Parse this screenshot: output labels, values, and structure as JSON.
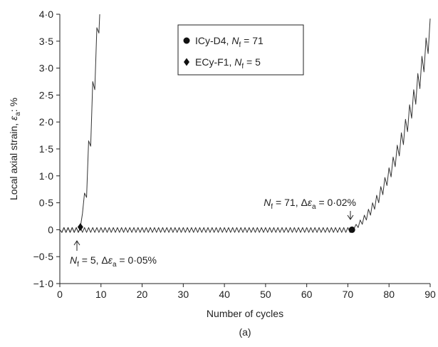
{
  "chart_data": {
    "type": "line",
    "x_label": "Number of cycles",
    "y_label": [
      "Local axial strain, ",
      "ε",
      "a",
      ": %"
    ],
    "caption": "(a)",
    "xlim": [
      0,
      90
    ],
    "xticks": [
      0,
      10,
      20,
      30,
      40,
      50,
      60,
      70,
      80,
      90
    ],
    "ylim": [
      -1,
      4
    ],
    "yticks": [
      {
        "value": -1,
        "label": "−1·0"
      },
      {
        "value": -0.5,
        "label": "−0·5"
      },
      0,
      {
        "value": 0.5,
        "label": "0·5"
      },
      {
        "value": 1,
        "label": "1·0"
      },
      {
        "value": 1.5,
        "label": "1·5"
      },
      {
        "value": 2,
        "label": "2·0"
      },
      {
        "value": 2.5,
        "label": "2·5"
      },
      {
        "value": 3,
        "label": "3·0"
      },
      {
        "value": 3.5,
        "label": "3·5"
      },
      {
        "value": 4,
        "label": "4·0"
      }
    ],
    "series": [
      {
        "name": [
          "ICy-D4, ",
          "N",
          "f",
          " = 71"
        ],
        "color": "#333333",
        "marker": "circle",
        "failure": {
          "x": 71,
          "y": 0
        },
        "x": [
          0,
          0.5,
          1,
          1.5,
          2,
          2.5,
          3,
          3.5,
          4,
          4.5,
          5,
          5.5,
          6,
          6.5,
          7,
          7.5,
          8,
          8.5,
          9,
          9.5,
          10,
          10.5,
          11,
          11.5,
          12,
          12.5,
          13,
          13.5,
          14,
          14.5,
          15,
          15.5,
          16,
          16.5,
          17,
          17.5,
          18,
          18.5,
          19,
          19.5,
          20,
          20.5,
          21,
          21.5,
          22,
          22.5,
          23,
          23.5,
          24,
          24.5,
          25,
          25.5,
          26,
          26.5,
          27,
          27.5,
          28,
          28.5,
          29,
          29.5,
          30,
          30.5,
          31,
          31.5,
          32,
          32.5,
          33,
          33.5,
          34,
          34.5,
          35,
          35.5,
          36,
          36.5,
          37,
          37.5,
          38,
          38.5,
          39,
          39.5,
          40,
          40.5,
          41,
          41.5,
          42,
          42.5,
          43,
          43.5,
          44,
          44.5,
          45,
          45.5,
          46,
          46.5,
          47,
          47.5,
          48,
          48.5,
          49,
          49.5,
          50,
          50.5,
          51,
          51.5,
          52,
          52.5,
          53,
          53.5,
          54,
          54.5,
          55,
          55.5,
          56,
          56.5,
          57,
          57.5,
          58,
          58.5,
          59,
          59.5,
          60,
          60.5,
          61,
          61.5,
          62,
          62.5,
          63,
          63.5,
          64,
          64.5,
          65,
          65.5,
          66,
          66.5,
          67,
          67.5,
          68,
          68.5,
          69,
          69.5,
          70,
          70.5,
          71,
          71.5,
          72,
          72.5,
          73,
          73.5,
          74,
          74.5,
          75,
          75.5,
          76,
          76.5,
          77,
          77.5,
          78,
          78.5,
          79,
          79.5,
          80,
          80.5,
          81,
          81.5,
          82,
          82.5,
          83,
          83.5,
          84,
          84.5,
          85,
          85.5,
          86,
          86.5,
          87,
          87.5,
          88,
          88.5,
          89,
          89.5,
          90
        ],
        "values": [
          0,
          -0.05,
          0.04,
          -0.05,
          0.04,
          -0.05,
          0.04,
          -0.05,
          0.04,
          -0.05,
          0.04,
          -0.05,
          0.04,
          -0.05,
          0.04,
          -0.05,
          0.04,
          -0.05,
          0.04,
          -0.05,
          0.04,
          -0.05,
          0.04,
          -0.05,
          0.04,
          -0.05,
          0.04,
          -0.05,
          0.04,
          -0.05,
          0.04,
          -0.05,
          0.04,
          -0.05,
          0.04,
          -0.05,
          0.04,
          -0.05,
          0.04,
          -0.05,
          0.04,
          -0.05,
          0.04,
          -0.05,
          0.04,
          -0.05,
          0.04,
          -0.05,
          0.04,
          -0.05,
          0.04,
          -0.05,
          0.04,
          -0.05,
          0.04,
          -0.05,
          0.04,
          -0.05,
          0.04,
          -0.05,
          0.04,
          -0.05,
          0.04,
          -0.05,
          0.04,
          -0.05,
          0.04,
          -0.05,
          0.04,
          -0.05,
          0.04,
          -0.05,
          0.04,
          -0.05,
          0.04,
          -0.05,
          0.04,
          -0.05,
          0.04,
          -0.05,
          0.04,
          -0.05,
          0.04,
          -0.05,
          0.04,
          -0.05,
          0.04,
          -0.05,
          0.04,
          -0.05,
          0.04,
          -0.05,
          0.04,
          -0.05,
          0.04,
          -0.05,
          0.04,
          -0.05,
          0.04,
          -0.05,
          0.04,
          -0.05,
          0.04,
          -0.05,
          0.04,
          -0.05,
          0.04,
          -0.05,
          0.04,
          -0.05,
          0.04,
          -0.05,
          0.04,
          -0.05,
          0.04,
          -0.05,
          0.04,
          -0.05,
          0.04,
          -0.05,
          0.04,
          -0.05,
          0.04,
          -0.05,
          0.04,
          -0.05,
          0.04,
          -0.05,
          0.04,
          -0.05,
          0.04,
          -0.05,
          0.04,
          -0.05,
          0.04,
          -0.05,
          0.04,
          -0.05,
          0.04,
          -0.05,
          0.04,
          -0.05,
          0,
          0.02,
          0.1,
          0.04,
          0.18,
          0.1,
          0.27,
          0.18,
          0.38,
          0.27,
          0.5,
          0.38,
          0.64,
          0.5,
          0.8,
          0.65,
          0.97,
          0.82,
          1.15,
          0.98,
          1.35,
          1.17,
          1.57,
          1.37,
          1.8,
          1.58,
          2.05,
          1.82,
          2.32,
          2.07,
          2.6,
          2.33,
          2.9,
          2.62,
          3.22,
          2.93,
          3.56,
          3.27,
          3.92
        ]
      },
      {
        "name": [
          "ECy-F1, ",
          "N",
          "f",
          " = 5"
        ],
        "color": "#333333",
        "marker": "diamond",
        "failure": {
          "x": 5,
          "y": 0.05
        },
        "x": [
          0,
          0.5,
          1,
          1.5,
          2,
          2.5,
          3,
          3.5,
          4,
          4.5,
          5,
          5.5,
          6,
          6.5,
          7,
          7.5,
          8,
          8.5,
          9,
          9.5,
          9.7
        ],
        "values": [
          0,
          -0.05,
          0.04,
          -0.05,
          0.04,
          -0.05,
          0.04,
          -0.05,
          0.04,
          -0.05,
          0.05,
          0.3,
          0.68,
          0.6,
          1.65,
          1.55,
          2.75,
          2.6,
          3.75,
          3.65,
          4
        ]
      }
    ],
    "annotations": [
      {
        "text": [
          "N",
          "f",
          " = 71, Δ",
          "ε",
          "a",
          " = 0·02%"
        ]
      },
      {
        "text": [
          "N",
          "f",
          " = 5, Δ",
          "ε",
          "a",
          " = 0·05%"
        ]
      }
    ]
  }
}
